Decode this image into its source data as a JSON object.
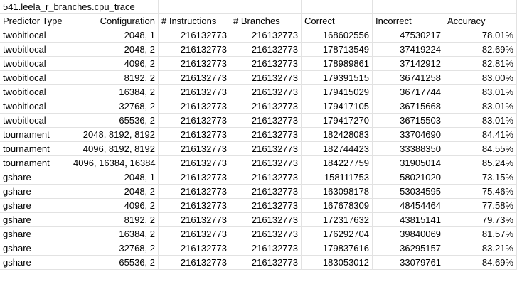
{
  "sheet": {
    "title": "541.leela_r_branches.cpu_trace",
    "headers": [
      "Predictor Type",
      "Configuration",
      "# Instructions",
      "# Branches",
      "Correct",
      "Incorrect",
      "Accuracy"
    ],
    "rows": [
      [
        "twobitlocal",
        "2048, 1",
        "216132773",
        "216132773",
        "168602556",
        "47530217",
        "78.01%"
      ],
      [
        "twobitlocal",
        "2048, 2",
        "216132773",
        "216132773",
        "178713549",
        "37419224",
        "82.69%"
      ],
      [
        "twobitlocal",
        "4096, 2",
        "216132773",
        "216132773",
        "178989861",
        "37142912",
        "82.81%"
      ],
      [
        "twobitlocal",
        "8192, 2",
        "216132773",
        "216132773",
        "179391515",
        "36741258",
        "83.00%"
      ],
      [
        "twobitlocal",
        "16384, 2",
        "216132773",
        "216132773",
        "179415029",
        "36717744",
        "83.01%"
      ],
      [
        "twobitlocal",
        "32768, 2",
        "216132773",
        "216132773",
        "179417105",
        "36715668",
        "83.01%"
      ],
      [
        "twobitlocal",
        "65536, 2",
        "216132773",
        "216132773",
        "179417270",
        "36715503",
        "83.01%"
      ],
      [
        "tournament",
        "2048, 8192, 8192",
        "216132773",
        "216132773",
        "182428083",
        "33704690",
        "84.41%"
      ],
      [
        "tournament",
        "4096, 8192, 8192",
        "216132773",
        "216132773",
        "182744423",
        "33388350",
        "84.55%"
      ],
      [
        "tournament",
        "4096, 16384, 16384",
        "216132773",
        "216132773",
        "184227759",
        "31905014",
        "85.24%"
      ],
      [
        "gshare",
        "2048, 1",
        "216132773",
        "216132773",
        "158111753",
        "58021020",
        "73.15%"
      ],
      [
        "gshare",
        "2048, 2",
        "216132773",
        "216132773",
        "163098178",
        "53034595",
        "75.46%"
      ],
      [
        "gshare",
        "4096, 2",
        "216132773",
        "216132773",
        "167678309",
        "48454464",
        "77.58%"
      ],
      [
        "gshare",
        "8192, 2",
        "216132773",
        "216132773",
        "172317632",
        "43815141",
        "79.73%"
      ],
      [
        "gshare",
        "16384, 2",
        "216132773",
        "216132773",
        "176292704",
        "39840069",
        "81.57%"
      ],
      [
        "gshare",
        "32768, 2",
        "216132773",
        "216132773",
        "179837616",
        "36295157",
        "83.21%"
      ],
      [
        "gshare",
        "65536, 2",
        "216132773",
        "216132773",
        "183053012",
        "33079761",
        "84.69%"
      ]
    ]
  }
}
